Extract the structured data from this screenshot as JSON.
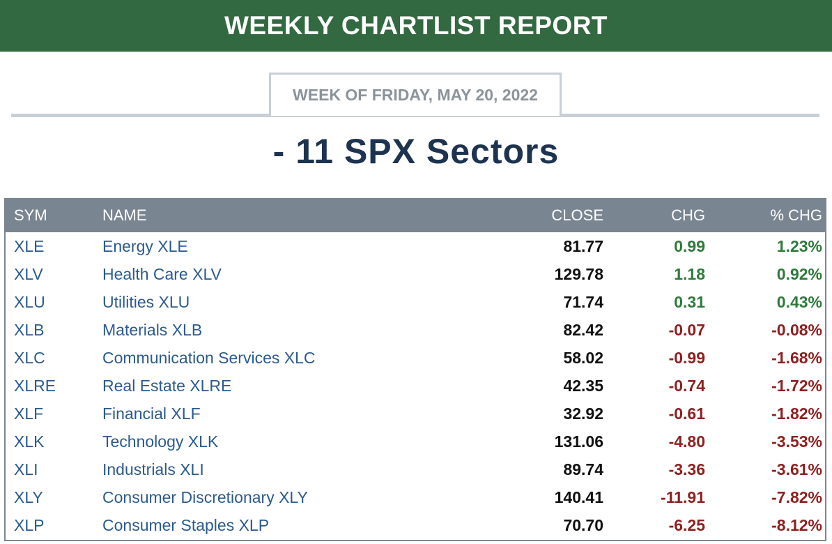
{
  "header": {
    "title": "WEEKLY CHARTLIST REPORT",
    "week": "WEEK OF FRIDAY, MAY 20, 2022",
    "section_title": "- 11 SPX Sectors"
  },
  "colors": {
    "banner": "#326941",
    "table_header": "#7a8592",
    "positive": "#2e7a3a",
    "negative": "#8e1f1f",
    "link": "#2b5a8f"
  },
  "table": {
    "columns": {
      "sym": "SYM",
      "name": "NAME",
      "close": "CLOSE",
      "chg": "CHG",
      "pct": "% CHG"
    },
    "rows": [
      {
        "sym": "XLE",
        "name": "Energy XLE",
        "close": "81.77",
        "chg": "0.99",
        "pct": "1.23%",
        "dir": "pos"
      },
      {
        "sym": "XLV",
        "name": "Health Care XLV",
        "close": "129.78",
        "chg": "1.18",
        "pct": "0.92%",
        "dir": "pos"
      },
      {
        "sym": "XLU",
        "name": "Utilities XLU",
        "close": "71.74",
        "chg": "0.31",
        "pct": "0.43%",
        "dir": "pos"
      },
      {
        "sym": "XLB",
        "name": "Materials XLB",
        "close": "82.42",
        "chg": "-0.07",
        "pct": "-0.08%",
        "dir": "neg"
      },
      {
        "sym": "XLC",
        "name": "Communication Services XLC",
        "close": "58.02",
        "chg": "-0.99",
        "pct": "-1.68%",
        "dir": "neg"
      },
      {
        "sym": "XLRE",
        "name": "Real Estate XLRE",
        "close": "42.35",
        "chg": "-0.74",
        "pct": "-1.72%",
        "dir": "neg"
      },
      {
        "sym": "XLF",
        "name": "Financial XLF",
        "close": "32.92",
        "chg": "-0.61",
        "pct": "-1.82%",
        "dir": "neg"
      },
      {
        "sym": "XLK",
        "name": "Technology XLK",
        "close": "131.06",
        "chg": "-4.80",
        "pct": "-3.53%",
        "dir": "neg"
      },
      {
        "sym": "XLI",
        "name": "Industrials XLI",
        "close": "89.74",
        "chg": "-3.36",
        "pct": "-3.61%",
        "dir": "neg"
      },
      {
        "sym": "XLY",
        "name": "Consumer Discretionary XLY",
        "close": "140.41",
        "chg": "-11.91",
        "pct": "-7.82%",
        "dir": "neg"
      },
      {
        "sym": "XLP",
        "name": "Consumer Staples XLP",
        "close": "70.70",
        "chg": "-6.25",
        "pct": "-8.12%",
        "dir": "neg"
      }
    ]
  }
}
